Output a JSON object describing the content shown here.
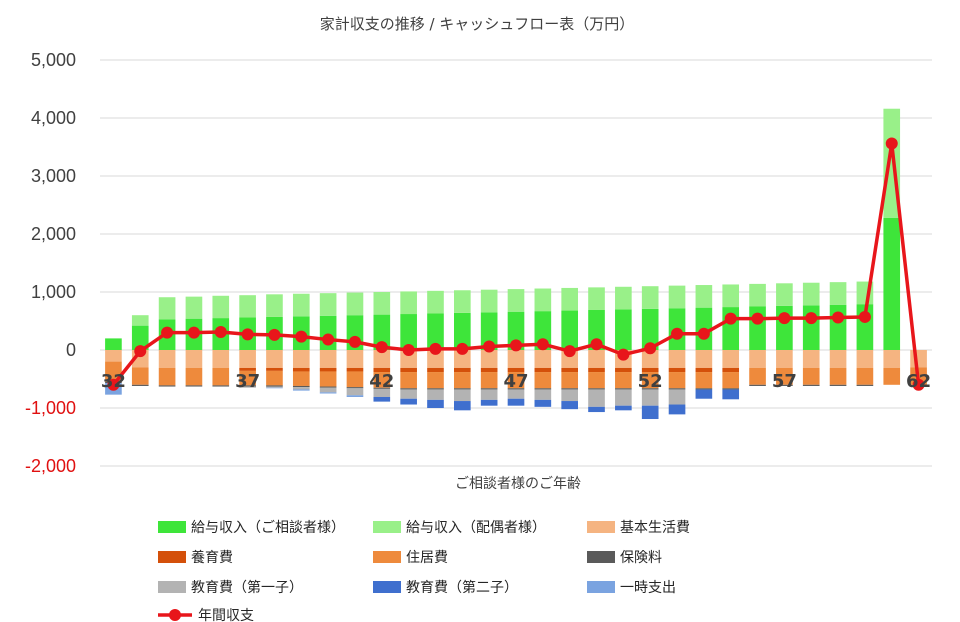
{
  "chart_data": {
    "type": "bar",
    "stacked": true,
    "title": "家計収支の推移 / キャッシュフロー表（万円）",
    "xlabel": "ご相談者様のご年齢",
    "ylabel": "",
    "ylim": [
      -2000,
      5000
    ],
    "yticks": [
      5000,
      4000,
      3000,
      2000,
      1000,
      0,
      -1000,
      -2000
    ],
    "ytick_labels": [
      "5,000",
      "4,000",
      "3,000",
      "2,000",
      "1,000",
      "0",
      "-1,000",
      "-2,000"
    ],
    "negative_tick_color": "#e01010",
    "positive_tick_color": "#404040",
    "grid": true,
    "legend_position": "bottom",
    "categories": [
      32,
      33,
      34,
      35,
      36,
      37,
      38,
      39,
      40,
      41,
      42,
      43,
      44,
      45,
      46,
      47,
      48,
      49,
      50,
      51,
      52,
      53,
      54,
      55,
      56,
      57,
      58,
      59,
      60,
      61,
      62
    ],
    "x_tick_labels": [
      "32",
      "37",
      "42",
      "47",
      "52",
      "57",
      "62"
    ],
    "series": [
      {
        "name": "給与収入（ご相談者様）",
        "color": "#3ee53a",
        "values": [
          200,
          420,
          530,
          540,
          550,
          560,
          570,
          580,
          590,
          600,
          610,
          620,
          630,
          640,
          650,
          660,
          670,
          680,
          690,
          700,
          710,
          720,
          730,
          740,
          750,
          760,
          770,
          780,
          790,
          2280,
          0
        ]
      },
      {
        "name": "給与収入（配偶者様）",
        "color": "#99f089",
        "values": [
          0,
          180,
          380,
          380,
          385,
          385,
          390,
          390,
          390,
          390,
          390,
          390,
          390,
          390,
          390,
          390,
          390,
          390,
          390,
          390,
          390,
          390,
          390,
          390,
          390,
          390,
          390,
          390,
          390,
          1880,
          0
        ]
      },
      {
        "name": "基本生活費",
        "color": "#f5b481",
        "values": [
          -200,
          -300,
          -310,
          -310,
          -310,
          -310,
          -310,
          -310,
          -310,
          -310,
          -310,
          -310,
          -310,
          -310,
          -310,
          -310,
          -310,
          -310,
          -310,
          -310,
          -310,
          -310,
          -310,
          -310,
          -310,
          -310,
          -310,
          -310,
          -310,
          -310,
          -300
        ]
      },
      {
        "name": "養育費",
        "color": "#d4500a",
        "values": [
          0,
          0,
          0,
          0,
          0,
          -50,
          -50,
          -60,
          -60,
          -60,
          -70,
          -70,
          -70,
          -70,
          -70,
          -70,
          -70,
          -70,
          -70,
          -70,
          -70,
          -70,
          -70,
          -70,
          0,
          0,
          0,
          0,
          0,
          0,
          0
        ]
      },
      {
        "name": "住居費",
        "color": "#ee8a3c",
        "values": [
          -350,
          -300,
          -300,
          -300,
          -300,
          -250,
          -250,
          -250,
          -260,
          -270,
          -270,
          -280,
          -280,
          -280,
          -280,
          -280,
          -280,
          -280,
          -280,
          -280,
          -280,
          -280,
          -280,
          -280,
          -290,
          -290,
          -290,
          -290,
          -290,
          -290,
          -300
        ]
      },
      {
        "name": "保険料",
        "color": "#5a5a5a",
        "values": [
          -20,
          -20,
          -20,
          -20,
          -20,
          -20,
          -20,
          -20,
          -20,
          -20,
          -20,
          -20,
          -20,
          -20,
          -20,
          -20,
          -20,
          -20,
          -20,
          -20,
          -20,
          -20,
          -20,
          -20,
          -20,
          -20,
          -20,
          -20,
          -20,
          0,
          0
        ]
      },
      {
        "name": "教育費（第一子）",
        "color": "#b3b3b3",
        "values": [
          0,
          0,
          0,
          0,
          0,
          -20,
          -20,
          -40,
          -80,
          -120,
          -140,
          -160,
          -180,
          -200,
          -180,
          -160,
          -180,
          -200,
          -300,
          -280,
          -280,
          -260,
          0,
          0,
          0,
          0,
          0,
          0,
          0,
          0,
          0
        ]
      },
      {
        "name": "教育費（第二子）",
        "color": "#3f6fce",
        "values": [
          0,
          0,
          0,
          0,
          0,
          0,
          0,
          0,
          0,
          0,
          -80,
          -100,
          -140,
          -160,
          -100,
          -120,
          -120,
          -140,
          -90,
          -80,
          -230,
          -170,
          -160,
          -170,
          0,
          0,
          0,
          0,
          0,
          0,
          0
        ]
      },
      {
        "name": "一時支出",
        "color": "#7aa3e0",
        "values": [
          -200,
          0,
          0,
          0,
          0,
          0,
          -10,
          -20,
          -20,
          -30,
          0,
          0,
          0,
          0,
          0,
          0,
          0,
          0,
          0,
          0,
          0,
          0,
          0,
          0,
          0,
          0,
          0,
          0,
          0,
          0,
          0
        ]
      }
    ],
    "line_series": {
      "name": "年間収支",
      "color": "#e8161b",
      "values": [
        -600,
        -20,
        300,
        300,
        310,
        270,
        260,
        230,
        180,
        140,
        50,
        0,
        20,
        20,
        60,
        80,
        100,
        -20,
        100,
        -80,
        30,
        280,
        280,
        540,
        540,
        550,
        550,
        560,
        570,
        3560,
        -600
      ]
    },
    "legend": [
      {
        "label": "給与収入（ご相談者様）",
        "color": "#3ee53a",
        "kind": "bar"
      },
      {
        "label": "給与収入（配偶者様）",
        "color": "#99f089",
        "kind": "bar"
      },
      {
        "label": "基本生活費",
        "color": "#f5b481",
        "kind": "bar"
      },
      {
        "label": "養育費",
        "color": "#d4500a",
        "kind": "bar"
      },
      {
        "label": "住居費",
        "color": "#ee8a3c",
        "kind": "bar"
      },
      {
        "label": "保険料",
        "color": "#5a5a5a",
        "kind": "bar"
      },
      {
        "label": "教育費（第一子）",
        "color": "#b3b3b3",
        "kind": "bar"
      },
      {
        "label": "教育費（第二子）",
        "color": "#3f6fce",
        "kind": "bar"
      },
      {
        "label": "一時支出",
        "color": "#7aa3e0",
        "kind": "bar"
      },
      {
        "label": "年間収支",
        "color": "#e8161b",
        "kind": "line"
      }
    ]
  }
}
